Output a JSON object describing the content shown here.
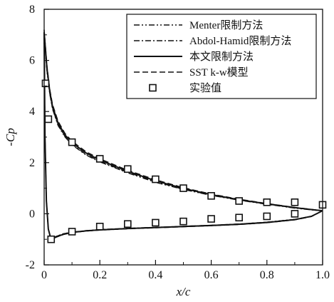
{
  "chart_data": {
    "type": "line",
    "xlabel": "x/c",
    "ylabel": "-Cp",
    "xlim": [
      0,
      1.0
    ],
    "ylim": [
      -2,
      8
    ],
    "x_ticks": [
      "0",
      "0.2",
      "0.4",
      "0.6",
      "0.8",
      "1.0"
    ],
    "y_ticks": [
      "-2",
      "0",
      "2",
      "4",
      "6",
      "8"
    ],
    "x_tick_values": [
      0,
      0.2,
      0.4,
      0.6,
      0.8,
      1.0
    ],
    "y_tick_values": [
      -2,
      0,
      2,
      4,
      6,
      8
    ],
    "grid": false,
    "legend_position": "top-right",
    "series": [
      {
        "name": "Menter限制方法",
        "style": "dash-dot-dot",
        "upper": [
          [
            0.0,
            7.0
          ],
          [
            0.005,
            6.3
          ],
          [
            0.01,
            5.6
          ],
          [
            0.02,
            4.7
          ],
          [
            0.03,
            4.1
          ],
          [
            0.05,
            3.45
          ],
          [
            0.075,
            3.0
          ],
          [
            0.1,
            2.7
          ],
          [
            0.15,
            2.3
          ],
          [
            0.2,
            2.03
          ],
          [
            0.3,
            1.6
          ],
          [
            0.4,
            1.23
          ],
          [
            0.5,
            0.95
          ],
          [
            0.6,
            0.72
          ],
          [
            0.7,
            0.53
          ],
          [
            0.8,
            0.37
          ],
          [
            0.9,
            0.22
          ],
          [
            0.97,
            0.14
          ],
          [
            1.0,
            0.12
          ]
        ],
        "lower": [
          [
            0.0,
            7.0
          ],
          [
            0.003,
            3.0
          ],
          [
            0.008,
            0.5
          ],
          [
            0.015,
            -0.6
          ],
          [
            0.025,
            -1.0
          ],
          [
            0.04,
            -0.9
          ],
          [
            0.07,
            -0.78
          ],
          [
            0.1,
            -0.72
          ],
          [
            0.15,
            -0.66
          ],
          [
            0.2,
            -0.62
          ],
          [
            0.3,
            -0.57
          ],
          [
            0.4,
            -0.53
          ],
          [
            0.5,
            -0.49
          ],
          [
            0.6,
            -0.45
          ],
          [
            0.7,
            -0.4
          ],
          [
            0.8,
            -0.33
          ],
          [
            0.9,
            -0.22
          ],
          [
            0.96,
            -0.1
          ],
          [
            1.0,
            0.12
          ]
        ]
      },
      {
        "name": "Abdol-Hamid限制方法",
        "style": "dash-dot",
        "upper": [
          [
            0.0,
            7.0
          ],
          [
            0.005,
            6.3
          ],
          [
            0.01,
            5.6
          ],
          [
            0.02,
            4.72
          ],
          [
            0.03,
            4.12
          ],
          [
            0.05,
            3.47
          ],
          [
            0.075,
            3.02
          ],
          [
            0.1,
            2.72
          ],
          [
            0.15,
            2.32
          ],
          [
            0.2,
            2.05
          ],
          [
            0.3,
            1.62
          ],
          [
            0.4,
            1.25
          ],
          [
            0.5,
            0.96
          ],
          [
            0.6,
            0.73
          ],
          [
            0.7,
            0.54
          ],
          [
            0.8,
            0.38
          ],
          [
            0.9,
            0.23
          ],
          [
            0.97,
            0.15
          ],
          [
            1.0,
            0.12
          ]
        ],
        "lower": [
          [
            0.0,
            7.0
          ],
          [
            0.003,
            3.0
          ],
          [
            0.008,
            0.5
          ],
          [
            0.015,
            -0.6
          ],
          [
            0.025,
            -1.0
          ],
          [
            0.04,
            -0.9
          ],
          [
            0.07,
            -0.78
          ],
          [
            0.1,
            -0.72
          ],
          [
            0.15,
            -0.66
          ],
          [
            0.2,
            -0.62
          ],
          [
            0.3,
            -0.57
          ],
          [
            0.4,
            -0.53
          ],
          [
            0.5,
            -0.49
          ],
          [
            0.6,
            -0.45
          ],
          [
            0.7,
            -0.4
          ],
          [
            0.8,
            -0.33
          ],
          [
            0.9,
            -0.22
          ],
          [
            0.96,
            -0.1
          ],
          [
            1.0,
            0.12
          ]
        ]
      },
      {
        "name": "本文限制方法",
        "style": "solid",
        "upper": [
          [
            0.0,
            7.1
          ],
          [
            0.005,
            6.4
          ],
          [
            0.01,
            5.7
          ],
          [
            0.02,
            4.8
          ],
          [
            0.03,
            4.2
          ],
          [
            0.05,
            3.55
          ],
          [
            0.075,
            3.08
          ],
          [
            0.1,
            2.78
          ],
          [
            0.15,
            2.38
          ],
          [
            0.2,
            2.1
          ],
          [
            0.3,
            1.66
          ],
          [
            0.4,
            1.29
          ],
          [
            0.5,
            0.99
          ],
          [
            0.6,
            0.75
          ],
          [
            0.7,
            0.55
          ],
          [
            0.8,
            0.39
          ],
          [
            0.9,
            0.24
          ],
          [
            0.97,
            0.15
          ],
          [
            1.0,
            0.12
          ]
        ],
        "lower": [
          [
            0.0,
            7.1
          ],
          [
            0.003,
            3.0
          ],
          [
            0.008,
            0.5
          ],
          [
            0.015,
            -0.6
          ],
          [
            0.025,
            -1.02
          ],
          [
            0.04,
            -0.92
          ],
          [
            0.07,
            -0.8
          ],
          [
            0.1,
            -0.73
          ],
          [
            0.15,
            -0.67
          ],
          [
            0.2,
            -0.63
          ],
          [
            0.3,
            -0.58
          ],
          [
            0.4,
            -0.54
          ],
          [
            0.5,
            -0.5
          ],
          [
            0.6,
            -0.46
          ],
          [
            0.7,
            -0.41
          ],
          [
            0.8,
            -0.34
          ],
          [
            0.9,
            -0.23
          ],
          [
            0.96,
            -0.1
          ],
          [
            1.0,
            0.12
          ]
        ]
      },
      {
        "name": "SST k-w模型",
        "style": "dash",
        "upper": [
          [
            0.0,
            7.2
          ],
          [
            0.005,
            6.5
          ],
          [
            0.01,
            5.8
          ],
          [
            0.02,
            4.88
          ],
          [
            0.03,
            4.28
          ],
          [
            0.05,
            3.62
          ],
          [
            0.075,
            3.14
          ],
          [
            0.1,
            2.84
          ],
          [
            0.15,
            2.43
          ],
          [
            0.2,
            2.15
          ],
          [
            0.3,
            1.7
          ],
          [
            0.4,
            1.33
          ],
          [
            0.5,
            1.02
          ],
          [
            0.6,
            0.77
          ],
          [
            0.7,
            0.57
          ],
          [
            0.8,
            0.4
          ],
          [
            0.9,
            0.25
          ],
          [
            0.97,
            0.16
          ],
          [
            1.0,
            0.12
          ]
        ],
        "lower": [
          [
            0.0,
            7.2
          ],
          [
            0.003,
            3.0
          ],
          [
            0.008,
            0.5
          ],
          [
            0.015,
            -0.6
          ],
          [
            0.025,
            -1.03
          ],
          [
            0.04,
            -0.93
          ],
          [
            0.07,
            -0.81
          ],
          [
            0.1,
            -0.74
          ],
          [
            0.15,
            -0.68
          ],
          [
            0.2,
            -0.64
          ],
          [
            0.3,
            -0.59
          ],
          [
            0.4,
            -0.55
          ],
          [
            0.5,
            -0.51
          ],
          [
            0.6,
            -0.47
          ],
          [
            0.7,
            -0.42
          ],
          [
            0.8,
            -0.35
          ],
          [
            0.9,
            -0.24
          ],
          [
            0.96,
            -0.11
          ],
          [
            1.0,
            0.12
          ]
        ]
      }
    ],
    "experiment": {
      "name": "实验值",
      "marker": "open-square",
      "points": [
        [
          0.005,
          5.1
        ],
        [
          0.015,
          3.7
        ],
        [
          0.1,
          2.8
        ],
        [
          0.2,
          2.15
        ],
        [
          0.3,
          1.75
        ],
        [
          0.4,
          1.35
        ],
        [
          0.5,
          1.0
        ],
        [
          0.6,
          0.7
        ],
        [
          0.7,
          0.5
        ],
        [
          0.8,
          0.45
        ],
        [
          0.9,
          0.45
        ],
        [
          1.0,
          0.35
        ],
        [
          0.025,
          -1.0
        ],
        [
          0.1,
          -0.7
        ],
        [
          0.2,
          -0.5
        ],
        [
          0.3,
          -0.4
        ],
        [
          0.4,
          -0.35
        ],
        [
          0.5,
          -0.3
        ],
        [
          0.6,
          -0.2
        ],
        [
          0.7,
          -0.15
        ],
        [
          0.8,
          -0.1
        ],
        [
          0.9,
          0.0
        ]
      ]
    }
  }
}
